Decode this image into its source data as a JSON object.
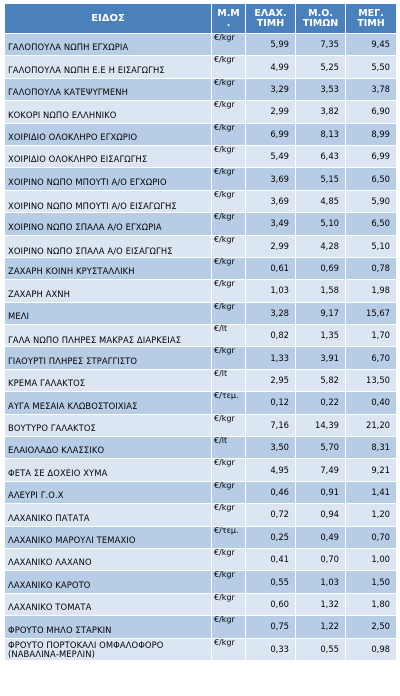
{
  "headers": {
    "name": "ΕΙΔΟΣ",
    "unit": "Μ.Μ .",
    "min": "ΕΛΑΧ. ΤΙΜΗ",
    "avg": "Μ.Ο. ΤΙΜΩΝ",
    "max": "ΜΕΓ. ΤΙΜΗ"
  },
  "rows": [
    {
      "name": "ΓΑΛΟΠΟΥΛΑ ΝΩΠΗ ΕΓΧΩΡΙΑ",
      "unit": "€/kgr",
      "min": "5,99",
      "avg": "7,35",
      "max": "9,45"
    },
    {
      "name": "ΓΑΛΟΠΟΥΛΑ ΝΩΠΗ Ε.Ε Η ΕΙΣΑΓΩΓΗΣ",
      "unit": "€/kgr",
      "min": "4,99",
      "avg": "5,25",
      "max": "5,50"
    },
    {
      "name": "ΓΑΛΟΠΟΥΛΑ ΚΑΤΕΨΥΓΜΕΝΗ",
      "unit": "€/kgr",
      "min": "3,29",
      "avg": "3,53",
      "max": "3,78"
    },
    {
      "name": "ΚΟΚΟΡΙ ΝΩΠΟ ΕΛΛΗΝΙΚΟ",
      "unit": "€/kgr",
      "min": "2,99",
      "avg": "3,82",
      "max": "6,90"
    },
    {
      "name": "ΧΟΙΡΙΔΙΟ ΟΛΟΚΛΗΡΟ ΕΓΧΩΡΙΟ",
      "unit": "€/kgr",
      "min": "6,99",
      "avg": "8,13",
      "max": "8,99"
    },
    {
      "name": "ΧΟΙΡΙΔΙΟ ΟΛΟΚΛΗΡΟ ΕΙΣΑΓΩΓΗΣ",
      "unit": "€/kgr",
      "min": "5,49",
      "avg": "6,43",
      "max": "6,99"
    },
    {
      "name": "ΧΟΙΡΙΝΟ ΝΩΠΟ ΜΠΟΥΤΙ Α/Ο ΕΓΧΩΡΙΟ",
      "unit": "€/kgr",
      "min": "3,69",
      "avg": "5,15",
      "max": "6,50"
    },
    {
      "name": "ΧΟΙΡΙΝΟ ΝΩΠΟ ΜΠΟΥΤΙ Α/Ο ΕΙΣΑΓΩΓΗΣ",
      "unit": "€/kgr",
      "min": "3,69",
      "avg": "4,85",
      "max": "5,90"
    },
    {
      "name": "ΧΟΙΡΙΝΟ ΝΩΠΟ ΣΠΑΛΑ Α/Ο ΕΓΧΩΡΙΑ",
      "unit": "€/kgr",
      "min": "3,49",
      "avg": "5,10",
      "max": "6,50"
    },
    {
      "name": "ΧΟΙΡΙΝΟ ΝΩΠΟ ΣΠΑΛΑ Α/Ο ΕΙΣΑΓΩΓΗΣ",
      "unit": "€/kgr",
      "min": "2,99",
      "avg": "4,28",
      "max": "5,10"
    },
    {
      "name": "ΖΑΧΑΡΗ ΚΟΙΝΗ ΚΡΥΣΤΑΛΛΙΚΗ",
      "unit": "€/kgr",
      "min": "0,61",
      "avg": "0,69",
      "max": "0,78"
    },
    {
      "name": "ΖΑΧΑΡΗ ΑΧΝΗ",
      "unit": "€/kgr",
      "min": "1,03",
      "avg": "1,58",
      "max": "1,98"
    },
    {
      "name": "ΜΕΛΙ",
      "unit": "€/kgr",
      "min": "3,28",
      "avg": "9,17",
      "max": "15,67"
    },
    {
      "name": "ΓΑΛΑ ΝΩΠΟ ΠΛΗΡΕΣ ΜΑΚΡΑΣ ΔΙΑΡΚΕΙΑΣ",
      "unit": "€/lt",
      "min": "0,82",
      "avg": "1,35",
      "max": "1,70"
    },
    {
      "name": "ΓΙΑΟΥΡΤΙ ΠΛΗΡΕΣ ΣΤΡΑΓΓΙΣΤΟ",
      "unit": "€/kgr",
      "min": "1,33",
      "avg": "3,91",
      "max": "6,70"
    },
    {
      "name": "ΚΡΕΜΑ ΓΑΛΑΚΤΟΣ",
      "unit": "€/lt",
      "min": "2,95",
      "avg": "5,82",
      "max": "13,50"
    },
    {
      "name": "ΑΥΓΑ ΜΕΣΑΙΑ ΚΛΩΒΟΣΤΟΙΧΙΑΣ",
      "unit": "€/τεμ.",
      "min": "0,12",
      "avg": "0,22",
      "max": "0,40"
    },
    {
      "name": "ΒΟΥΤΥΡΟ ΓΑΛΑΚΤΟΣ",
      "unit": "€/kgr",
      "min": "7,16",
      "avg": "14,39",
      "max": "21,20"
    },
    {
      "name": "ΕΛΑΙΟΛΑΔΟ ΚΛΑΣΣΙΚΟ",
      "unit": "€/lt",
      "min": "3,50",
      "avg": "5,70",
      "max": "8,31"
    },
    {
      "name": "ΦΕΤΑ ΣΕ ΔΟΧΕΙΟ ΧΥΜΑ",
      "unit": "€/kgr",
      "min": "4,95",
      "avg": "7,49",
      "max": "9,21"
    },
    {
      "name": "ΑΛΕΥΡΙ Γ.Ο.Χ",
      "unit": "€/kgr",
      "min": "0,46",
      "avg": "0,91",
      "max": "1,41"
    },
    {
      "name": "ΛΑΧΑΝΙΚΟ ΠΑΤΑΤΑ",
      "unit": "€/kgr",
      "min": "0,72",
      "avg": "0,94",
      "max": "1,20"
    },
    {
      "name": "ΛΑΧΑΝΙΚΟ ΜΑΡΟΥΛΙ ΤΕΜΑΧΙΟ",
      "unit": "€/τεμ.",
      "min": "0,25",
      "avg": "0,49",
      "max": "0,70"
    },
    {
      "name": "ΛΑΧΑΝΙΚΟ ΛΑΧΑΝΟ",
      "unit": "€/kgr",
      "min": "0,41",
      "avg": "0,70",
      "max": "1,00"
    },
    {
      "name": "ΛΑΧΑΝΙΚΟ ΚΑΡΟΤΟ",
      "unit": "€/kgr",
      "min": "0,55",
      "avg": "1,03",
      "max": "1,50"
    },
    {
      "name": "ΛΑΧΑΝΙΚΟ ΤΟΜΑΤΑ",
      "unit": "€/kgr",
      "min": "0,60",
      "avg": "1,32",
      "max": "1,80"
    },
    {
      "name": "ΦΡΟΥΤΟ ΜΗΛΟ ΣΤΑΡΚΙΝ",
      "unit": "€/kgr",
      "min": "0,75",
      "avg": "1,22",
      "max": "2,50"
    },
    {
      "name": "ΦΡΟΥΤΟ ΠΟΡΤΟΚΑΛΙ ΟΜΦΑΛΟΦΟΡΟ (ΝΑΒΑΛΙΝΑ-ΜΕΡΛΙΝ)",
      "unit": "€/kgr",
      "min": "0,33",
      "avg": "0,55",
      "max": "0,98"
    }
  ],
  "colors": {
    "header": "#4a81bd",
    "row_dark": "#b7cde6",
    "row_light": "#dce6f2"
  }
}
